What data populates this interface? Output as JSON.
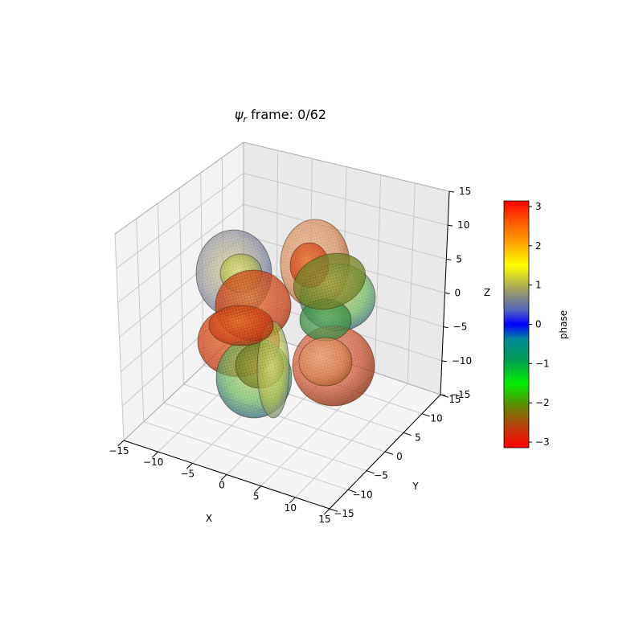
{
  "chart_data": {
    "type": "scatter",
    "subtype": "3d-isosurface",
    "title_symbol": "ψ",
    "title_subscript": "r",
    "title_text": " frame: 0/62",
    "xlabel": "X",
    "ylabel": "Y",
    "zlabel": "Z",
    "xlim": [
      -15,
      15
    ],
    "ylim": [
      -15,
      15
    ],
    "zlim": [
      -15,
      15
    ],
    "xticks": [
      -15,
      -10,
      -5,
      0,
      5,
      10,
      15
    ],
    "yticks": [
      -15,
      -10,
      -5,
      0,
      5,
      10,
      15
    ],
    "zticks": [
      -15,
      -10,
      -5,
      0,
      5,
      10,
      15
    ],
    "grid": true,
    "colorbar": {
      "label": "phase",
      "min": -3.14159,
      "max": 3.14159,
      "ticks": [
        3,
        2,
        1,
        0,
        -1,
        -2,
        -3
      ],
      "colormap": "phase-wheel (red→orange→yellow→olive→blue→teal→green→olive→red)"
    }
  }
}
